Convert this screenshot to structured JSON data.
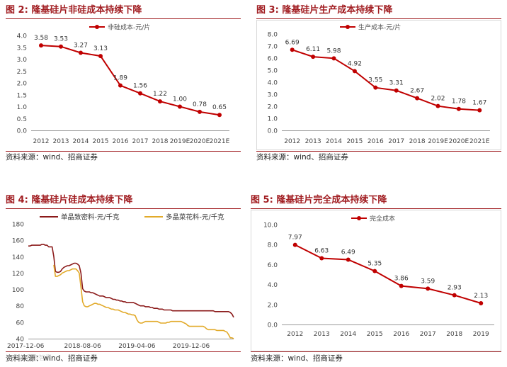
{
  "charts": [
    {
      "id": "fig2",
      "figure_label": "图 2:",
      "title": "隆基硅片非硅成本持续下降",
      "source": "资料来源：wind、招商证券",
      "chart": {
        "type": "line",
        "categories": [
          "2012",
          "2013",
          "2014",
          "2015",
          "2016",
          "2017",
          "2018",
          "2019E",
          "2020E",
          "2021E"
        ],
        "series": [
          {
            "name": "非硅成本-元/片",
            "color": "#c00000",
            "values": [
              3.58,
              3.53,
              3.27,
              3.13,
              1.89,
              1.56,
              1.22,
              1.0,
              0.78,
              0.65
            ],
            "labels": [
              "3.58",
              "3.53",
              "3.27",
              "3.13",
              "1.89",
              "1.56",
              "1.22",
              "1.00",
              "0.78",
              "0.65"
            ]
          }
        ],
        "ylim": [
          0,
          4.0
        ],
        "ystep": 0.5,
        "yticks": [
          "0.0",
          "0.5",
          "1.0",
          "1.5",
          "2.0",
          "2.5",
          "3.0",
          "3.5",
          "4.0"
        ],
        "grid": false,
        "legend": "top-center"
      }
    },
    {
      "id": "fig3",
      "figure_label": "图 3:",
      "title": "隆基硅片生产成本持续下降",
      "source": "资料来源：wind、招商证券",
      "chart": {
        "type": "line",
        "categories": [
          "2012",
          "2013",
          "2014",
          "2015",
          "2016",
          "2017",
          "2018",
          "2019E",
          "2020E",
          "2021E"
        ],
        "series": [
          {
            "name": "生产成本-元/片",
            "color": "#c00000",
            "values": [
              6.69,
              6.11,
              5.98,
              4.92,
              3.55,
              3.31,
              2.67,
              2.02,
              1.78,
              1.67
            ],
            "labels": [
              "6.69",
              "6.11",
              "5.98",
              "4.92",
              "3.55",
              "3.31",
              "2.67",
              "2.02",
              "1.78",
              "1.67"
            ]
          }
        ],
        "ylim": [
          0,
          8.0
        ],
        "ystep": 1.0,
        "yticks": [
          "0.0",
          "1.0",
          "2.0",
          "3.0",
          "4.0",
          "5.0",
          "6.0",
          "7.0",
          "8.0"
        ],
        "grid": false,
        "legend": "top-center"
      }
    },
    {
      "id": "fig4",
      "figure_label": "图 4:",
      "title": "隆基硅片硅成本持续下降",
      "source": "资料来源：wind、招商证券",
      "watermark": "与你的投资智囊",
      "chart": {
        "type": "line",
        "xtick_labels": [
          "2017-12-06",
          "2018-08-06",
          "2019-04-06",
          "2019-12-06"
        ],
        "xtick_index": [
          0,
          32,
          64,
          96
        ],
        "n_points": 122,
        "series": [
          {
            "name": "单晶致密料-元/千克",
            "color": "#8b1a1a",
            "values": [
              153,
              153,
              154,
              154,
              154,
              154,
              154,
              154,
              155,
              155,
              154,
              154,
              152,
              152,
              152,
              140,
              122,
              121,
              121,
              122,
              125,
              127,
              128,
              129,
              129,
              130,
              131,
              132,
              132,
              131,
              129,
              120,
              101,
              98,
              97,
              97,
              97,
              96,
              96,
              95,
              94,
              93,
              92,
              92,
              92,
              91,
              90,
              90,
              90,
              89,
              88,
              88,
              87,
              87,
              86,
              86,
              85,
              85,
              84,
              84,
              84,
              84,
              84,
              83,
              82,
              81,
              80,
              80,
              80,
              79,
              79,
              79,
              78,
              78,
              77,
              77,
              77,
              76,
              76,
              76,
              75,
              75,
              75,
              75,
              75,
              74,
              74,
              74,
              74,
              74,
              74,
              74,
              74,
              74,
              74,
              74,
              74,
              74,
              74,
              74,
              74,
              74,
              74,
              74,
              74,
              74,
              74,
              74,
              74,
              74,
              73,
              73,
              73,
              73,
              73,
              73,
              73,
              73,
              73,
              72,
              70,
              66
            ]
          },
          {
            "name": "多晶菜花料-元/千克",
            "color": "#e2aa2a",
            "values": [
              null,
              null,
              null,
              null,
              null,
              null,
              null,
              null,
              null,
              null,
              null,
              null,
              null,
              null,
              null,
              130,
              116,
              116,
              117,
              118,
              120,
              121,
              122,
              123,
              123,
              124,
              125,
              125,
              125,
              123,
              120,
              103,
              85,
              80,
              79,
              79,
              80,
              81,
              82,
              83,
              83,
              82,
              82,
              81,
              80,
              79,
              78,
              78,
              77,
              76,
              76,
              75,
              75,
              75,
              74,
              73,
              72,
              72,
              71,
              70,
              70,
              69,
              69,
              68,
              63,
              60,
              59,
              59,
              60,
              61,
              61,
              61,
              61,
              61,
              61,
              61,
              61,
              60,
              59,
              59,
              59,
              59,
              60,
              60,
              61,
              61,
              61,
              61,
              61,
              61,
              61,
              60,
              59,
              58,
              56,
              55,
              55,
              55,
              55,
              55,
              55,
              55,
              55,
              55,
              54,
              52,
              51,
              51,
              51,
              51,
              51,
              50,
              50,
              50,
              50,
              50,
              49,
              48,
              45,
              41,
              41,
              40
            ]
          }
        ],
        "ylim": [
          40,
          180
        ],
        "ystep": 20,
        "yticks": [
          "40",
          "60",
          "80",
          "100",
          "120",
          "140",
          "160",
          "180"
        ],
        "grid": false,
        "legend": "top"
      }
    },
    {
      "id": "fig5",
      "figure_label": "图 5:",
      "title": "隆基硅片完全成本持续下降",
      "source": "资料来源：wind、招商证券",
      "chart": {
        "type": "line",
        "categories": [
          "2012",
          "2013",
          "2014",
          "2015",
          "2016",
          "2017",
          "2018",
          "2019"
        ],
        "series": [
          {
            "name": "完全成本",
            "color": "#c00000",
            "values": [
              7.97,
              6.63,
              6.49,
              5.35,
              3.86,
              3.59,
              2.93,
              2.13
            ],
            "labels": [
              "7.97",
              "6.63",
              "6.49",
              "5.35",
              "3.86",
              "3.59",
              "2.93",
              "2.13"
            ]
          }
        ],
        "ylim": [
          0,
          10.0
        ],
        "ystep": 2.0,
        "yticks": [
          "0.0",
          "2.0",
          "4.0",
          "6.0",
          "8.0",
          "10.0"
        ],
        "grid": false,
        "legend": "top-center"
      }
    }
  ]
}
